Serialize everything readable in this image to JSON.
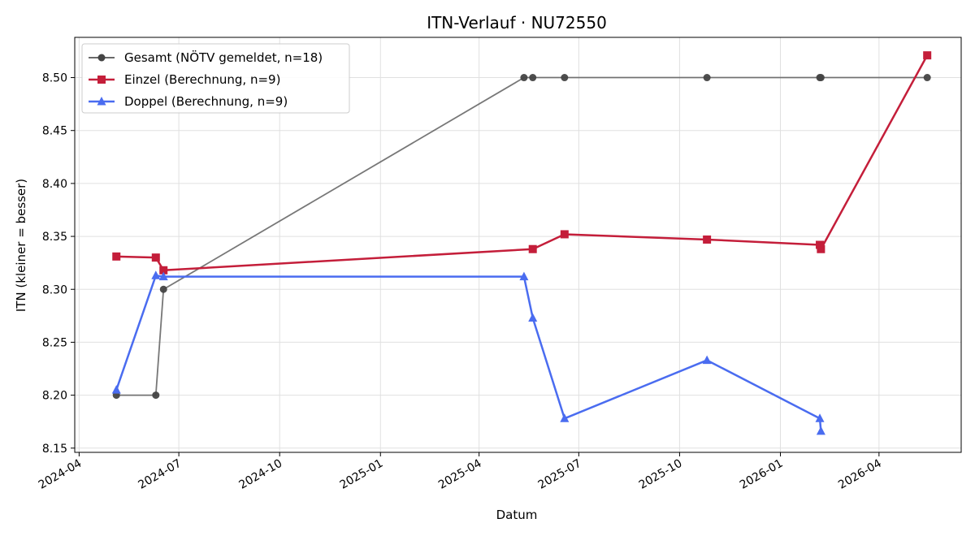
{
  "chart_data": {
    "type": "line",
    "title": "ITN-Verlauf · NU72550",
    "xlabel": "Datum",
    "ylabel": "ITN  (kleiner = besser)",
    "xlim": [
      "2024-03-28",
      "2026-06-15"
    ],
    "ylim": [
      8.146,
      8.538
    ],
    "grid": true,
    "legend_position": "top-left",
    "x_ticks": [
      "2024-04",
      "2024-07",
      "2024-10",
      "2025-01",
      "2025-04",
      "2025-07",
      "2025-10",
      "2026-01",
      "2026-04"
    ],
    "y_ticks": [
      8.15,
      8.2,
      8.25,
      8.3,
      8.35,
      8.4,
      8.45,
      8.5
    ],
    "y_tick_labels": [
      "8.15",
      "8.20",
      "8.25",
      "8.30",
      "8.35",
      "8.40",
      "8.45",
      "8.50"
    ],
    "series": [
      {
        "name": "Gesamt (NÖTV gemeldet, n=18)",
        "color": "#555555",
        "marker": "circle",
        "points": [
          {
            "x": "2024-05-05",
            "y": 8.2
          },
          {
            "x": "2024-06-10",
            "y": 8.2
          },
          {
            "x": "2024-06-17",
            "y": 8.3
          },
          {
            "x": "2025-05-12",
            "y": 8.5
          },
          {
            "x": "2025-05-20",
            "y": 8.5
          },
          {
            "x": "2025-06-18",
            "y": 8.5
          },
          {
            "x": "2025-10-26",
            "y": 8.5
          },
          {
            "x": "2026-02-06",
            "y": 8.5
          },
          {
            "x": "2026-02-07",
            "y": 8.5
          },
          {
            "x": "2026-05-15",
            "y": 8.5
          }
        ]
      },
      {
        "name": "Einzel (Berechnung, n=9)",
        "color": "#c41e3a",
        "marker": "square",
        "points": [
          {
            "x": "2024-05-05",
            "y": 8.331
          },
          {
            "x": "2024-06-10",
            "y": 8.33
          },
          {
            "x": "2024-06-17",
            "y": 8.318
          },
          {
            "x": "2025-05-20",
            "y": 8.338
          },
          {
            "x": "2025-06-18",
            "y": 8.352
          },
          {
            "x": "2025-10-26",
            "y": 8.347
          },
          {
            "x": "2026-02-06",
            "y": 8.342
          },
          {
            "x": "2026-02-07",
            "y": 8.338
          },
          {
            "x": "2026-05-15",
            "y": 8.521
          }
        ]
      },
      {
        "name": "Doppel (Berechnung, n=9)",
        "color": "#4a6cf0",
        "marker": "triangle",
        "points": [
          {
            "x": "2024-05-05",
            "y": 8.205
          },
          {
            "x": "2024-06-10",
            "y": 8.313
          },
          {
            "x": "2024-06-17",
            "y": 8.312
          },
          {
            "x": "2025-05-12",
            "y": 8.312
          },
          {
            "x": "2025-05-20",
            "y": 8.273
          },
          {
            "x": "2025-06-18",
            "y": 8.178
          },
          {
            "x": "2025-10-26",
            "y": 8.233
          },
          {
            "x": "2026-02-06",
            "y": 8.178
          },
          {
            "x": "2026-02-07",
            "y": 8.166
          }
        ]
      }
    ]
  }
}
